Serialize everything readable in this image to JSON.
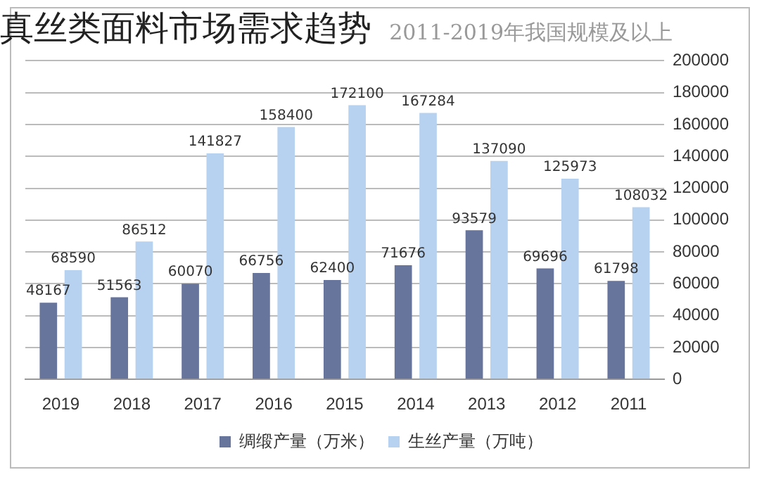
{
  "chart_data": {
    "type": "bar",
    "title": "真丝类面料市场需求趋势",
    "subtitle": "2011-2019年我国规模及以上",
    "categories": [
      "2019",
      "2018",
      "2017",
      "2016",
      "2015",
      "2014",
      "2013",
      "2012",
      "2011"
    ],
    "series": [
      {
        "name": "绸缎产量（万米）",
        "color": "#67759d",
        "values": [
          48167,
          51563,
          60070,
          66756,
          62400,
          71676,
          93579,
          69696,
          61798
        ]
      },
      {
        "name": "生丝产量（万吨）",
        "color": "#b7d2f0",
        "values": [
          68590,
          86512,
          141827,
          158400,
          172100,
          167284,
          137090,
          125973,
          108032
        ]
      }
    ],
    "ylim": [
      0,
      200000
    ],
    "yticks": [
      0,
      20000,
      40000,
      60000,
      80000,
      100000,
      120000,
      140000,
      160000,
      180000,
      200000
    ],
    "grid": "y",
    "legend": "bottom",
    "data_labels": true
  }
}
